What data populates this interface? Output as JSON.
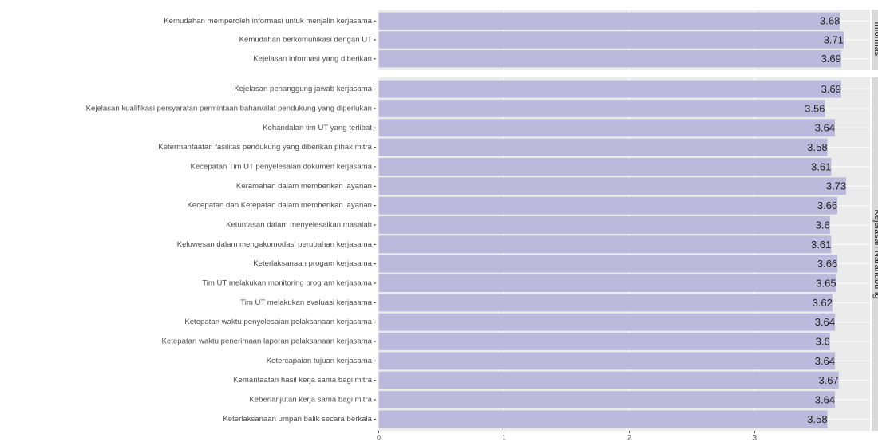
{
  "chart_data": [
    {
      "type": "bar",
      "orientation": "horizontal",
      "title": "Informasi",
      "color": "#bdb9dc",
      "categories": [
        "Kemudahan memperoleh informasi untuk menjalin kerjasama",
        "Kemudahan berkomunikasi dengan UT",
        "Kejelasan informasi yang diberikan"
      ],
      "values": [
        3.68,
        3.71,
        3.69
      ],
      "xlim": [
        -0.01,
        3.92
      ],
      "xticks": [
        0,
        1,
        2,
        3
      ],
      "grid": true
    },
    {
      "type": "bar",
      "orientation": "horizontal",
      "title": "Kejelasan Narahubung",
      "color": "#bdb9dc",
      "categories": [
        "Kejelasan penanggung jawab kerjasama",
        "Kejelasan kualifikasi persyaratan permintaan bahan/alat pendukung yang diperlukan",
        "Kehandalan tim UT yang terlibat",
        "Ketermanfaatan fasilitas pendukung yang diberikan pihak mitra",
        "Kecepatan Tim UT penyelesaian dokumen kerjasama",
        "Keramahan dalam memberikan layanan",
        "Kecepatan dan Ketepatan dalam memberikan layanan",
        "Ketuntasan dalam menyelesaikan masalah",
        "Keluwesan dalam mengakomodasi perubahan kerjasama",
        "Keterlaksanaan progam kerjasama",
        "Tim UT melakukan monitoring program kerjasama",
        "Tim UT melakukan evaluasi kerjasama",
        "Ketepatan waktu penyelesaian pelaksanaan kerjasama",
        "Ketepatan waktu penerimaan laporan pelaksanaan kerjasama",
        "Ketercapaian tujuan kerjasama",
        "Kemanfaatan hasil kerja sama bagi mitra",
        "Keberlanjutan kerja sama bagi mitra",
        "Keterlaksanaan umpan balik secara berkala"
      ],
      "values": [
        3.69,
        3.56,
        3.64,
        3.58,
        3.61,
        3.73,
        3.66,
        3.6,
        3.61,
        3.66,
        3.65,
        3.62,
        3.64,
        3.6,
        3.64,
        3.67,
        3.64,
        3.58
      ],
      "xlim": [
        -0.01,
        3.92
      ],
      "xticks": [
        0,
        1,
        2,
        3
      ],
      "grid": true
    }
  ]
}
